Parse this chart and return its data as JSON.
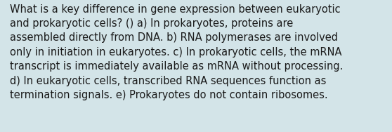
{
  "lines": [
    "What is a key difference in gene expression between eukaryotic",
    "and prokaryotic cells? () a) In prokaryotes, proteins are",
    "assembled directly from DNA. b) RNA polymerases are involved",
    "only in initiation in eukaryotes. c) In prokaryotic cells, the mRNA",
    "transcript is immediately available as mRNA without processing.",
    "d) In eukaryotic cells, transcribed RNA sequences function as",
    "termination signals. e) Prokaryotes do not contain ribosomes."
  ],
  "background_color": "#d3e4e8",
  "text_color": "#1a1a1a",
  "font_size": 10.5,
  "font_family": "DejaVu Sans",
  "fig_width": 5.58,
  "fig_height": 1.88,
  "dpi": 100
}
